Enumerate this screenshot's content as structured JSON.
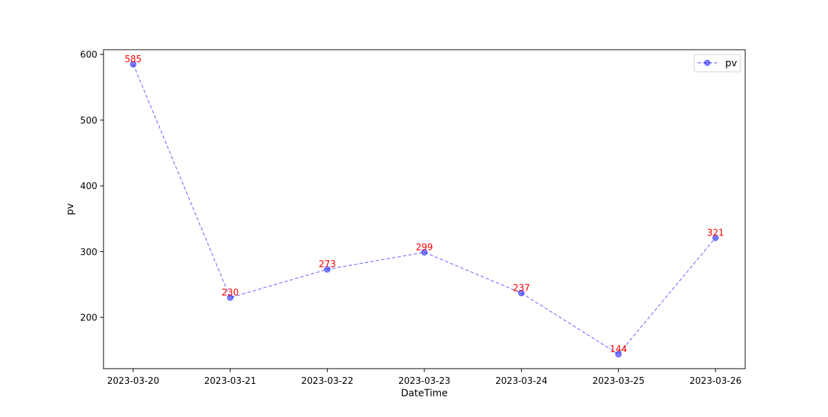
{
  "chart_data": {
    "type": "line",
    "title": "",
    "xlabel": "DateTime",
    "ylabel": "pv",
    "x": [
      "2023-03-20",
      "2023-03-21",
      "2023-03-22",
      "2023-03-23",
      "2023-03-24",
      "2023-03-25",
      "2023-03-26"
    ],
    "series": [
      {
        "name": "pv",
        "values": [
          585,
          230,
          273,
          299,
          237,
          144,
          321
        ],
        "color": "#0000ff",
        "line_style": "dashed",
        "marker": "circle",
        "label_color": "#ff0000"
      }
    ],
    "yticks": [
      200,
      300,
      400,
      500,
      600
    ],
    "ylim": [
      121.95,
      607.05
    ],
    "grid": false,
    "legend_position": "top-right"
  }
}
